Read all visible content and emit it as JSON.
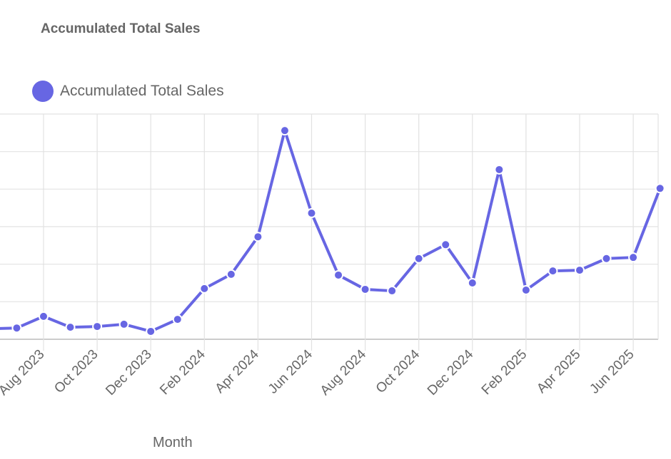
{
  "chart_data": {
    "type": "line",
    "title": "Accumulated Total Sales",
    "xlabel": "Month",
    "ylabel": "",
    "legend": {
      "position": "top-left",
      "entries": [
        "Accumulated Total Sales"
      ]
    },
    "grid": true,
    "x_tick_labels": [
      "Aug 2023",
      "Oct 2023",
      "Dec 2023",
      "Feb 2024",
      "Apr 2024",
      "Jun 2024",
      "Aug 2024",
      "Oct 2024",
      "Dec 2024",
      "Feb 2025",
      "Apr 2025",
      "Jun 2025"
    ],
    "y_axis_note": "y tick labels not visible (cropped); values below in gridline units, 0 = x-axis, 6 = top gridline",
    "ylim": [
      0,
      6
    ],
    "categories": [
      "Jun 2023",
      "Jul 2023",
      "Aug 2023",
      "Sep 2023",
      "Oct 2023",
      "Nov 2023",
      "Dec 2023",
      "Jan 2024",
      "Feb 2024",
      "Mar 2024",
      "Apr 2024",
      "May 2024",
      "Jun 2024",
      "Jul 2024",
      "Aug 2024",
      "Sep 2024",
      "Oct 2024",
      "Nov 2024",
      "Dec 2024",
      "Jan 2025",
      "Feb 2025",
      "Mar 2025",
      "Apr 2025",
      "May 2025",
      "Jun 2025",
      "Jul 2025"
    ],
    "series": [
      {
        "name": "Accumulated Total Sales",
        "color": "#6766e3",
        "values": [
          0.28,
          0.3,
          0.61,
          0.32,
          0.34,
          0.4,
          0.21,
          0.53,
          1.35,
          1.73,
          2.73,
          5.56,
          3.36,
          1.71,
          1.33,
          1.29,
          2.15,
          2.52,
          1.5,
          4.52,
          1.31,
          1.82,
          1.84,
          2.15,
          2.18,
          4.02
        ]
      }
    ]
  },
  "colors": {
    "accent": "#6766e3",
    "grid": "#e0e0e0",
    "text": "#666666"
  }
}
